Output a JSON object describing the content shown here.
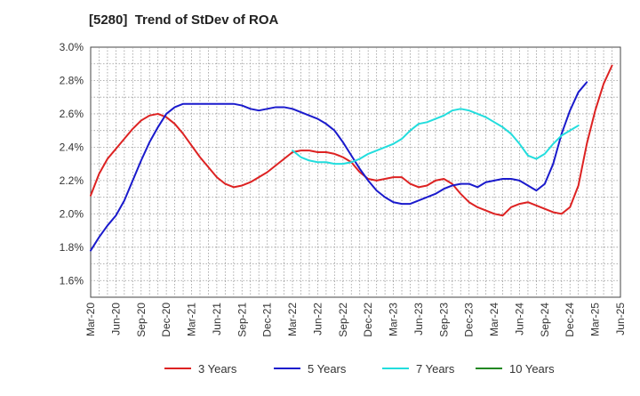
{
  "chart_data": {
    "type": "line",
    "title": "[5280]  Trend of StDev of ROA",
    "xlabel": "",
    "ylabel": "",
    "x_ticks": [
      "Mar-20",
      "Jun-20",
      "Sep-20",
      "Dec-20",
      "Mar-21",
      "Jun-21",
      "Sep-21",
      "Dec-21",
      "Mar-22",
      "Jun-22",
      "Sep-22",
      "Dec-22",
      "Mar-23",
      "Jun-23",
      "Sep-23",
      "Dec-23",
      "Mar-24",
      "Jun-24",
      "Sep-24",
      "Dec-24",
      "Mar-25",
      "Jun-25"
    ],
    "y_ticks": [
      "1.6%",
      "1.8%",
      "2.0%",
      "2.2%",
      "2.4%",
      "2.6%",
      "2.8%",
      "3.0%"
    ],
    "ylim": [
      1.5,
      3.0
    ],
    "grid": true,
    "legend_position": "bottom",
    "series": [
      {
        "name": "3 Years",
        "color": "#dd2222",
        "points": [
          [
            0,
            2.11
          ],
          [
            1,
            2.24
          ],
          [
            2,
            2.33
          ],
          [
            3,
            2.39
          ],
          [
            4,
            2.45
          ],
          [
            5,
            2.51
          ],
          [
            6,
            2.56
          ],
          [
            7,
            2.59
          ],
          [
            8,
            2.6
          ],
          [
            9,
            2.58
          ],
          [
            10,
            2.54
          ],
          [
            11,
            2.48
          ],
          [
            12,
            2.41
          ],
          [
            13,
            2.34
          ],
          [
            14,
            2.28
          ],
          [
            15,
            2.22
          ],
          [
            16,
            2.18
          ],
          [
            17,
            2.16
          ],
          [
            18,
            2.17
          ],
          [
            19,
            2.19
          ],
          [
            20,
            2.22
          ],
          [
            21,
            2.25
          ],
          [
            22,
            2.29
          ],
          [
            23,
            2.33
          ],
          [
            24,
            2.37
          ],
          [
            25,
            2.38
          ],
          [
            26,
            2.38
          ],
          [
            27,
            2.37
          ],
          [
            28,
            2.37
          ],
          [
            29,
            2.36
          ],
          [
            30,
            2.34
          ],
          [
            31,
            2.31
          ],
          [
            32,
            2.25
          ],
          [
            33,
            2.21
          ],
          [
            34,
            2.2
          ],
          [
            35,
            2.21
          ],
          [
            36,
            2.22
          ],
          [
            37,
            2.22
          ],
          [
            38,
            2.18
          ],
          [
            39,
            2.16
          ],
          [
            40,
            2.17
          ],
          [
            41,
            2.2
          ],
          [
            42,
            2.21
          ],
          [
            43,
            2.18
          ],
          [
            44,
            2.12
          ],
          [
            45,
            2.07
          ],
          [
            46,
            2.04
          ],
          [
            47,
            2.02
          ],
          [
            48,
            2.0
          ],
          [
            49,
            1.99
          ],
          [
            50,
            2.04
          ],
          [
            51,
            2.06
          ],
          [
            52,
            2.07
          ],
          [
            53,
            2.05
          ],
          [
            54,
            2.03
          ],
          [
            55,
            2.01
          ],
          [
            56,
            2.0
          ],
          [
            57,
            2.04
          ],
          [
            58,
            2.17
          ],
          [
            59,
            2.42
          ],
          [
            60,
            2.62
          ],
          [
            61,
            2.78
          ],
          [
            62,
            2.89
          ]
        ]
      },
      {
        "name": "5 Years",
        "color": "#1a1acc",
        "points": [
          [
            0,
            1.78
          ],
          [
            1,
            1.86
          ],
          [
            2,
            1.93
          ],
          [
            3,
            1.99
          ],
          [
            4,
            2.08
          ],
          [
            5,
            2.2
          ],
          [
            6,
            2.32
          ],
          [
            7,
            2.43
          ],
          [
            8,
            2.52
          ],
          [
            9,
            2.6
          ],
          [
            10,
            2.64
          ],
          [
            11,
            2.66
          ],
          [
            12,
            2.66
          ],
          [
            13,
            2.66
          ],
          [
            14,
            2.66
          ],
          [
            15,
            2.66
          ],
          [
            16,
            2.66
          ],
          [
            17,
            2.66
          ],
          [
            18,
            2.65
          ],
          [
            19,
            2.63
          ],
          [
            20,
            2.62
          ],
          [
            21,
            2.63
          ],
          [
            22,
            2.64
          ],
          [
            23,
            2.64
          ],
          [
            24,
            2.63
          ],
          [
            25,
            2.61
          ],
          [
            26,
            2.59
          ],
          [
            27,
            2.57
          ],
          [
            28,
            2.54
          ],
          [
            29,
            2.5
          ],
          [
            30,
            2.43
          ],
          [
            31,
            2.35
          ],
          [
            32,
            2.27
          ],
          [
            33,
            2.2
          ],
          [
            34,
            2.14
          ],
          [
            35,
            2.1
          ],
          [
            36,
            2.07
          ],
          [
            37,
            2.06
          ],
          [
            38,
            2.06
          ],
          [
            39,
            2.08
          ],
          [
            40,
            2.1
          ],
          [
            41,
            2.12
          ],
          [
            42,
            2.15
          ],
          [
            43,
            2.17
          ],
          [
            44,
            2.18
          ],
          [
            45,
            2.18
          ],
          [
            46,
            2.16
          ],
          [
            47,
            2.19
          ],
          [
            48,
            2.2
          ],
          [
            49,
            2.21
          ],
          [
            50,
            2.21
          ],
          [
            51,
            2.2
          ],
          [
            52,
            2.17
          ],
          [
            53,
            2.14
          ],
          [
            54,
            2.18
          ],
          [
            55,
            2.3
          ],
          [
            56,
            2.48
          ],
          [
            57,
            2.62
          ],
          [
            58,
            2.73
          ],
          [
            59,
            2.79
          ]
        ]
      },
      {
        "name": "7 Years",
        "color": "#22dddd",
        "points": [
          [
            24,
            2.38
          ],
          [
            25,
            2.34
          ],
          [
            26,
            2.32
          ],
          [
            27,
            2.31
          ],
          [
            28,
            2.31
          ],
          [
            29,
            2.3
          ],
          [
            30,
            2.3
          ],
          [
            31,
            2.31
          ],
          [
            32,
            2.33
          ],
          [
            33,
            2.36
          ],
          [
            34,
            2.38
          ],
          [
            35,
            2.4
          ],
          [
            36,
            2.42
          ],
          [
            37,
            2.45
          ],
          [
            38,
            2.5
          ],
          [
            39,
            2.54
          ],
          [
            40,
            2.55
          ],
          [
            41,
            2.57
          ],
          [
            42,
            2.59
          ],
          [
            43,
            2.62
          ],
          [
            44,
            2.63
          ],
          [
            45,
            2.62
          ],
          [
            46,
            2.6
          ],
          [
            47,
            2.58
          ],
          [
            48,
            2.55
          ],
          [
            49,
            2.52
          ],
          [
            50,
            2.48
          ],
          [
            51,
            2.42
          ],
          [
            52,
            2.35
          ],
          [
            53,
            2.33
          ],
          [
            54,
            2.36
          ],
          [
            55,
            2.42
          ],
          [
            56,
            2.47
          ],
          [
            57,
            2.5
          ],
          [
            58,
            2.53
          ]
        ]
      },
      {
        "name": "10 Years",
        "color": "#228822",
        "points": []
      }
    ]
  }
}
